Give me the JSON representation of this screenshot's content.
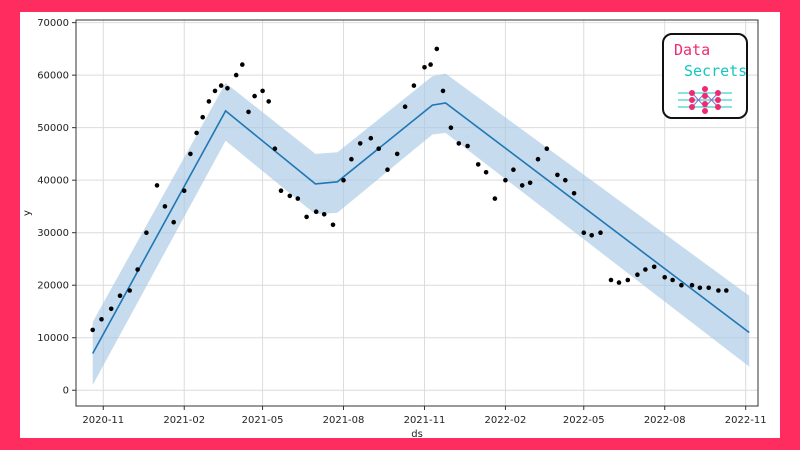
{
  "chart_data": {
    "type": "line",
    "title": "",
    "xlabel": "ds",
    "ylabel": "y",
    "xlim": [
      "2020-10-01",
      "2022-11-15"
    ],
    "ylim": [
      -3000,
      70500
    ],
    "grid": true,
    "x_ticks": [
      "2020-11",
      "2021-02",
      "2021-05",
      "2021-08",
      "2021-11",
      "2022-02",
      "2022-05",
      "2022-08",
      "2022-11"
    ],
    "x_tick_dates": [
      "2020-11-01",
      "2021-02-01",
      "2021-05-01",
      "2021-08-01",
      "2021-11-01",
      "2022-02-01",
      "2022-05-01",
      "2022-08-01",
      "2022-11-01"
    ],
    "y_ticks": [
      0,
      10000,
      20000,
      30000,
      40000,
      50000,
      60000,
      70000
    ],
    "y_tick_labels": [
      "0",
      "10000",
      "20000",
      "30000",
      "40000",
      "50000",
      "60000",
      "70000"
    ],
    "colors": {
      "trend": "#1f77b4",
      "band": "#a8c8e4",
      "points": "#000000",
      "grid": "#dcdcdc"
    },
    "series": [
      {
        "kind": "forecast",
        "x": [
          "2020-10-20",
          "2021-03-20",
          "2021-06-30",
          "2021-07-25",
          "2021-11-10",
          "2021-11-25",
          "2022-11-05"
        ],
        "y": [
          7000,
          53200,
          39300,
          39700,
          54300,
          54700,
          11000
        ]
      },
      {
        "kind": "uncertainty_upper",
        "x": [
          "2020-10-20",
          "2021-03-20",
          "2021-06-30",
          "2021-07-25",
          "2021-11-10",
          "2021-11-25",
          "2022-11-05"
        ],
        "y": [
          13000,
          58500,
          45000,
          45300,
          59800,
          60300,
          18000
        ]
      },
      {
        "kind": "uncertainty_lower",
        "x": [
          "2020-10-20",
          "2021-03-20",
          "2021-06-30",
          "2021-07-25",
          "2021-11-10",
          "2021-11-25",
          "2022-11-05"
        ],
        "y": [
          1000,
          47500,
          33500,
          33800,
          48700,
          49000,
          4500
        ]
      },
      {
        "kind": "observed",
        "x": [
          "2020-10-20",
          "2020-10-30",
          "2020-11-10",
          "2020-11-20",
          "2020-12-01",
          "2020-12-10",
          "2020-12-20",
          "2021-01-01",
          "2021-01-10",
          "2021-01-20",
          "2021-02-01",
          "2021-02-08",
          "2021-02-15",
          "2021-02-22",
          "2021-03-01",
          "2021-03-08",
          "2021-03-15",
          "2021-03-22",
          "2021-04-01",
          "2021-04-08",
          "2021-04-15",
          "2021-04-22",
          "2021-05-01",
          "2021-05-08",
          "2021-05-15",
          "2021-05-22",
          "2021-06-01",
          "2021-06-10",
          "2021-06-20",
          "2021-07-01",
          "2021-07-10",
          "2021-07-20",
          "2021-08-01",
          "2021-08-10",
          "2021-08-20",
          "2021-09-01",
          "2021-09-10",
          "2021-09-20",
          "2021-10-01",
          "2021-10-10",
          "2021-10-20",
          "2021-11-01",
          "2021-11-08",
          "2021-11-15",
          "2021-11-22",
          "2021-12-01",
          "2021-12-10",
          "2021-12-20",
          "2022-01-01",
          "2022-01-10",
          "2022-01-20",
          "2022-02-01",
          "2022-02-10",
          "2022-02-20",
          "2022-03-01",
          "2022-03-10",
          "2022-03-20",
          "2022-04-01",
          "2022-04-10",
          "2022-04-20",
          "2022-05-01",
          "2022-05-10",
          "2022-05-20",
          "2022-06-01",
          "2022-06-10",
          "2022-06-20",
          "2022-07-01",
          "2022-07-10",
          "2022-07-20",
          "2022-08-01",
          "2022-08-10",
          "2022-08-20",
          "2022-09-01",
          "2022-09-10",
          "2022-09-20",
          "2022-10-01",
          "2022-10-10"
        ],
        "y": [
          11500,
          13500,
          15500,
          18000,
          19000,
          23000,
          30000,
          39000,
          35000,
          32000,
          38000,
          45000,
          49000,
          52000,
          55000,
          57000,
          58000,
          57500,
          60000,
          62000,
          53000,
          56000,
          57000,
          55000,
          46000,
          38000,
          37000,
          36500,
          33000,
          34000,
          33500,
          31500,
          40000,
          44000,
          47000,
          48000,
          46000,
          42000,
          45000,
          54000,
          58000,
          61500,
          62000,
          65000,
          57000,
          50000,
          47000,
          46500,
          43000,
          41500,
          36500,
          40000,
          42000,
          39000,
          39500,
          44000,
          46000,
          41000,
          40000,
          37500,
          30000,
          29500,
          30000,
          21000,
          20500,
          21000,
          22000,
          23000,
          23500,
          21500,
          21000,
          20000,
          20000,
          19500,
          19500,
          19000,
          19000
        ]
      }
    ]
  },
  "logo": {
    "line1": "Data",
    "line2": "Secrets"
  }
}
